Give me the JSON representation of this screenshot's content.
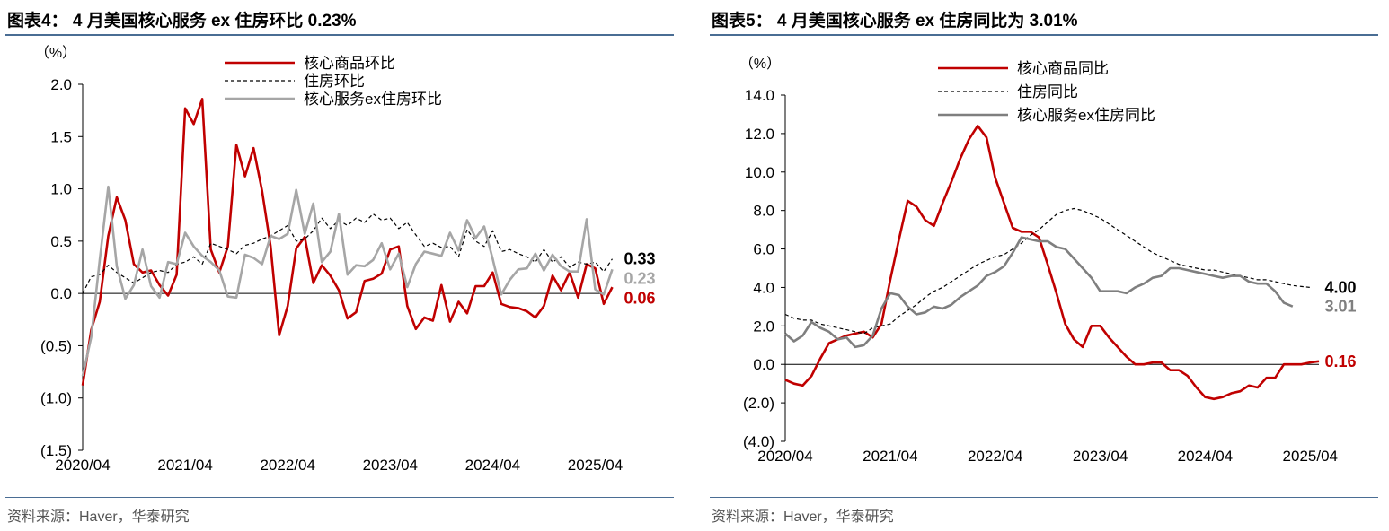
{
  "charts": [
    {
      "title": "图表4： 4 月美国核心服务 ex 住房环比 0.23%",
      "source": "资料来源：Haver，华泰研究",
      "unit_label": "（%）",
      "chart_data": {
        "type": "line",
        "xlim": [
          0,
          61
        ],
        "ylim": [
          -1.5,
          2.0
        ],
        "yticks": [
          "2.0",
          "1.5",
          "1.0",
          "0.5",
          "0.0",
          "(0.5)",
          "(1.0)",
          "(1.5)"
        ],
        "ytick_values": [
          2.0,
          1.5,
          1.0,
          0.5,
          0.0,
          -0.5,
          -1.0,
          -1.5
        ],
        "xticks": [
          "2020/04",
          "2021/04",
          "2022/04",
          "2023/04",
          "2024/04",
          "2025/04"
        ],
        "xtick_values": [
          0,
          12,
          24,
          36,
          48,
          60
        ],
        "legend_position": "top",
        "series": [
          {
            "name": "核心商品环比",
            "color": "#c00000",
            "style": "solid",
            "values": [
              -0.88,
              -0.35,
              -0.08,
              0.55,
              0.92,
              0.7,
              0.28,
              0.2,
              0.22,
              0.08,
              -0.02,
              0.18,
              1.77,
              1.62,
              1.86,
              0.42,
              0.2,
              0.45,
              1.42,
              1.12,
              1.39,
              0.98,
              0.45,
              -0.4,
              -0.12,
              0.43,
              0.54,
              0.1,
              0.27,
              0.17,
              0.03,
              -0.24,
              -0.18,
              0.12,
              0.14,
              0.19,
              0.42,
              0.45,
              -0.12,
              -0.34,
              -0.23,
              -0.26,
              0.08,
              -0.27,
              -0.08,
              -0.19,
              0.07,
              0.07,
              0.2,
              -0.1,
              -0.13,
              -0.14,
              -0.17,
              -0.23,
              -0.12,
              0.17,
              0.03,
              0.2,
              -0.04,
              0.28,
              0.24,
              -0.1,
              0.06
            ]
          },
          {
            "name": "住房环比",
            "color": "#000000",
            "style": "dashed",
            "values": [
              0.0,
              0.16,
              0.18,
              0.27,
              0.2,
              0.15,
              0.1,
              0.15,
              0.2,
              0.22,
              0.2,
              0.28,
              0.3,
              0.35,
              0.28,
              0.48,
              0.45,
              0.42,
              0.38,
              0.46,
              0.48,
              0.52,
              0.55,
              0.6,
              0.65,
              0.5,
              0.52,
              0.6,
              0.72,
              0.62,
              0.7,
              0.65,
              0.72,
              0.68,
              0.76,
              0.7,
              0.72,
              0.62,
              0.68,
              0.56,
              0.45,
              0.48,
              0.44,
              0.45,
              0.35,
              0.61,
              0.5,
              0.45,
              0.6,
              0.4,
              0.42,
              0.38,
              0.35,
              0.3,
              0.42,
              0.3,
              0.35,
              0.25,
              0.3,
              0.28,
              0.3,
              0.21,
              0.33
            ]
          },
          {
            "name": "核心服务ex住房环比",
            "color": "#a6a6a6",
            "style": "solid",
            "values": [
              -0.79,
              -0.42,
              0.32,
              1.02,
              0.26,
              -0.05,
              0.08,
              0.42,
              0.07,
              -0.04,
              0.3,
              0.28,
              0.58,
              0.45,
              0.36,
              0.3,
              0.22,
              -0.03,
              -0.04,
              0.37,
              0.34,
              0.28,
              0.55,
              0.52,
              0.57,
              0.99,
              0.57,
              0.86,
              0.3,
              0.4,
              0.76,
              0.18,
              0.27,
              0.26,
              0.32,
              0.48,
              0.23,
              0.38,
              0.06,
              0.28,
              0.4,
              0.38,
              0.36,
              0.58,
              0.41,
              0.7,
              0.53,
              0.64,
              0.33,
              -0.01,
              0.13,
              0.23,
              0.24,
              0.38,
              0.22,
              0.37,
              0.26,
              0.21,
              0.21,
              0.71,
              0.04,
              -0.01,
              0.23
            ]
          }
        ],
        "end_labels": [
          {
            "text": "0.33",
            "color": "#000000",
            "value": 0.33
          },
          {
            "text": "0.23",
            "color": "#a6a6a6",
            "value": 0.23
          },
          {
            "text": "0.06",
            "color": "#c00000",
            "value": 0.06
          }
        ]
      }
    },
    {
      "title": "图表5： 4 月美国核心服务 ex 住房同比为 3.01%",
      "source": "资料来源：Haver，华泰研究",
      "unit_label": "（%）",
      "chart_data": {
        "type": "line",
        "xlim": [
          0,
          61
        ],
        "ylim": [
          -4.0,
          14.0
        ],
        "yticks": [
          "14.0",
          "12.0",
          "10.0",
          "8.0",
          "6.0",
          "4.0",
          "2.0",
          "0.0",
          "(2.0)",
          "(4.0)"
        ],
        "ytick_values": [
          14,
          12,
          10,
          8,
          6,
          4,
          2,
          0,
          -2,
          -4
        ],
        "xticks": [
          "2020/04",
          "2021/04",
          "2022/04",
          "2023/04",
          "2024/04",
          "2025/04"
        ],
        "xtick_values": [
          0,
          12,
          24,
          36,
          48,
          60
        ],
        "legend_position": "top",
        "series": [
          {
            "name": "核心商品同比",
            "color": "#c00000",
            "style": "solid",
            "values": [
              -0.8,
              -1.0,
              -1.1,
              -0.6,
              0.3,
              1.1,
              1.3,
              1.5,
              1.6,
              1.7,
              1.4,
              2.1,
              4.4,
              6.5,
              8.5,
              8.2,
              7.5,
              7.2,
              8.4,
              9.5,
              10.7,
              11.7,
              12.4,
              11.8,
              9.7,
              8.4,
              7.1,
              6.9,
              6.9,
              6.6,
              5.2,
              3.7,
              2.1,
              1.3,
              0.9,
              2.0,
              2.0,
              1.4,
              0.9,
              0.4,
              0.0,
              0.0,
              0.1,
              0.1,
              -0.3,
              -0.3,
              -0.6,
              -1.2,
              -1.7,
              -1.8,
              -1.7,
              -1.5,
              -1.4,
              -1.1,
              -1.2,
              -0.7,
              -0.7,
              -0.0,
              -0.0,
              0.0,
              0.1,
              0.16
            ]
          },
          {
            "name": "住房同比",
            "color": "#000000",
            "style": "dashed",
            "values": [
              2.6,
              2.4,
              2.3,
              2.3,
              2.1,
              2.0,
              1.9,
              1.8,
              1.7,
              1.6,
              1.9,
              2.0,
              2.1,
              2.5,
              2.8,
              3.1,
              3.5,
              3.8,
              4.0,
              4.3,
              4.6,
              4.9,
              5.2,
              5.4,
              5.6,
              5.7,
              6.0,
              6.3,
              6.7,
              7.0,
              7.4,
              7.8,
              8.0,
              8.1,
              8.0,
              7.8,
              7.6,
              7.3,
              7.0,
              6.7,
              6.4,
              6.1,
              5.8,
              5.6,
              5.4,
              5.2,
              5.1,
              5.0,
              4.9,
              4.9,
              4.8,
              4.7,
              4.6,
              4.5,
              4.4,
              4.4,
              4.3,
              4.2,
              4.1,
              4.05,
              4.0
            ]
          },
          {
            "name": "核心服务ex住房同比",
            "color": "#7f7f7f",
            "style": "solid",
            "values": [
              1.6,
              1.2,
              1.5,
              2.2,
              1.9,
              1.7,
              1.3,
              1.4,
              0.9,
              1.0,
              1.5,
              2.9,
              3.7,
              3.6,
              3.0,
              2.6,
              2.7,
              3.0,
              2.9,
              3.1,
              3.5,
              3.8,
              4.1,
              4.6,
              4.8,
              5.1,
              5.8,
              6.6,
              6.5,
              6.4,
              6.4,
              6.1,
              6.0,
              5.5,
              5.0,
              4.5,
              3.8,
              3.8,
              3.8,
              3.7,
              4.0,
              4.2,
              4.5,
              4.6,
              5.0,
              5.0,
              4.9,
              4.8,
              4.7,
              4.6,
              4.5,
              4.6,
              4.6,
              4.3,
              4.2,
              4.2,
              3.8,
              3.2,
              3.01
            ]
          }
        ],
        "end_labels": [
          {
            "text": "4.00",
            "color": "#000000",
            "value": 4.0
          },
          {
            "text": "3.01",
            "color": "#7f7f7f",
            "value": 3.01
          },
          {
            "text": "0.16",
            "color": "#c00000",
            "value": 0.16
          }
        ]
      }
    }
  ]
}
